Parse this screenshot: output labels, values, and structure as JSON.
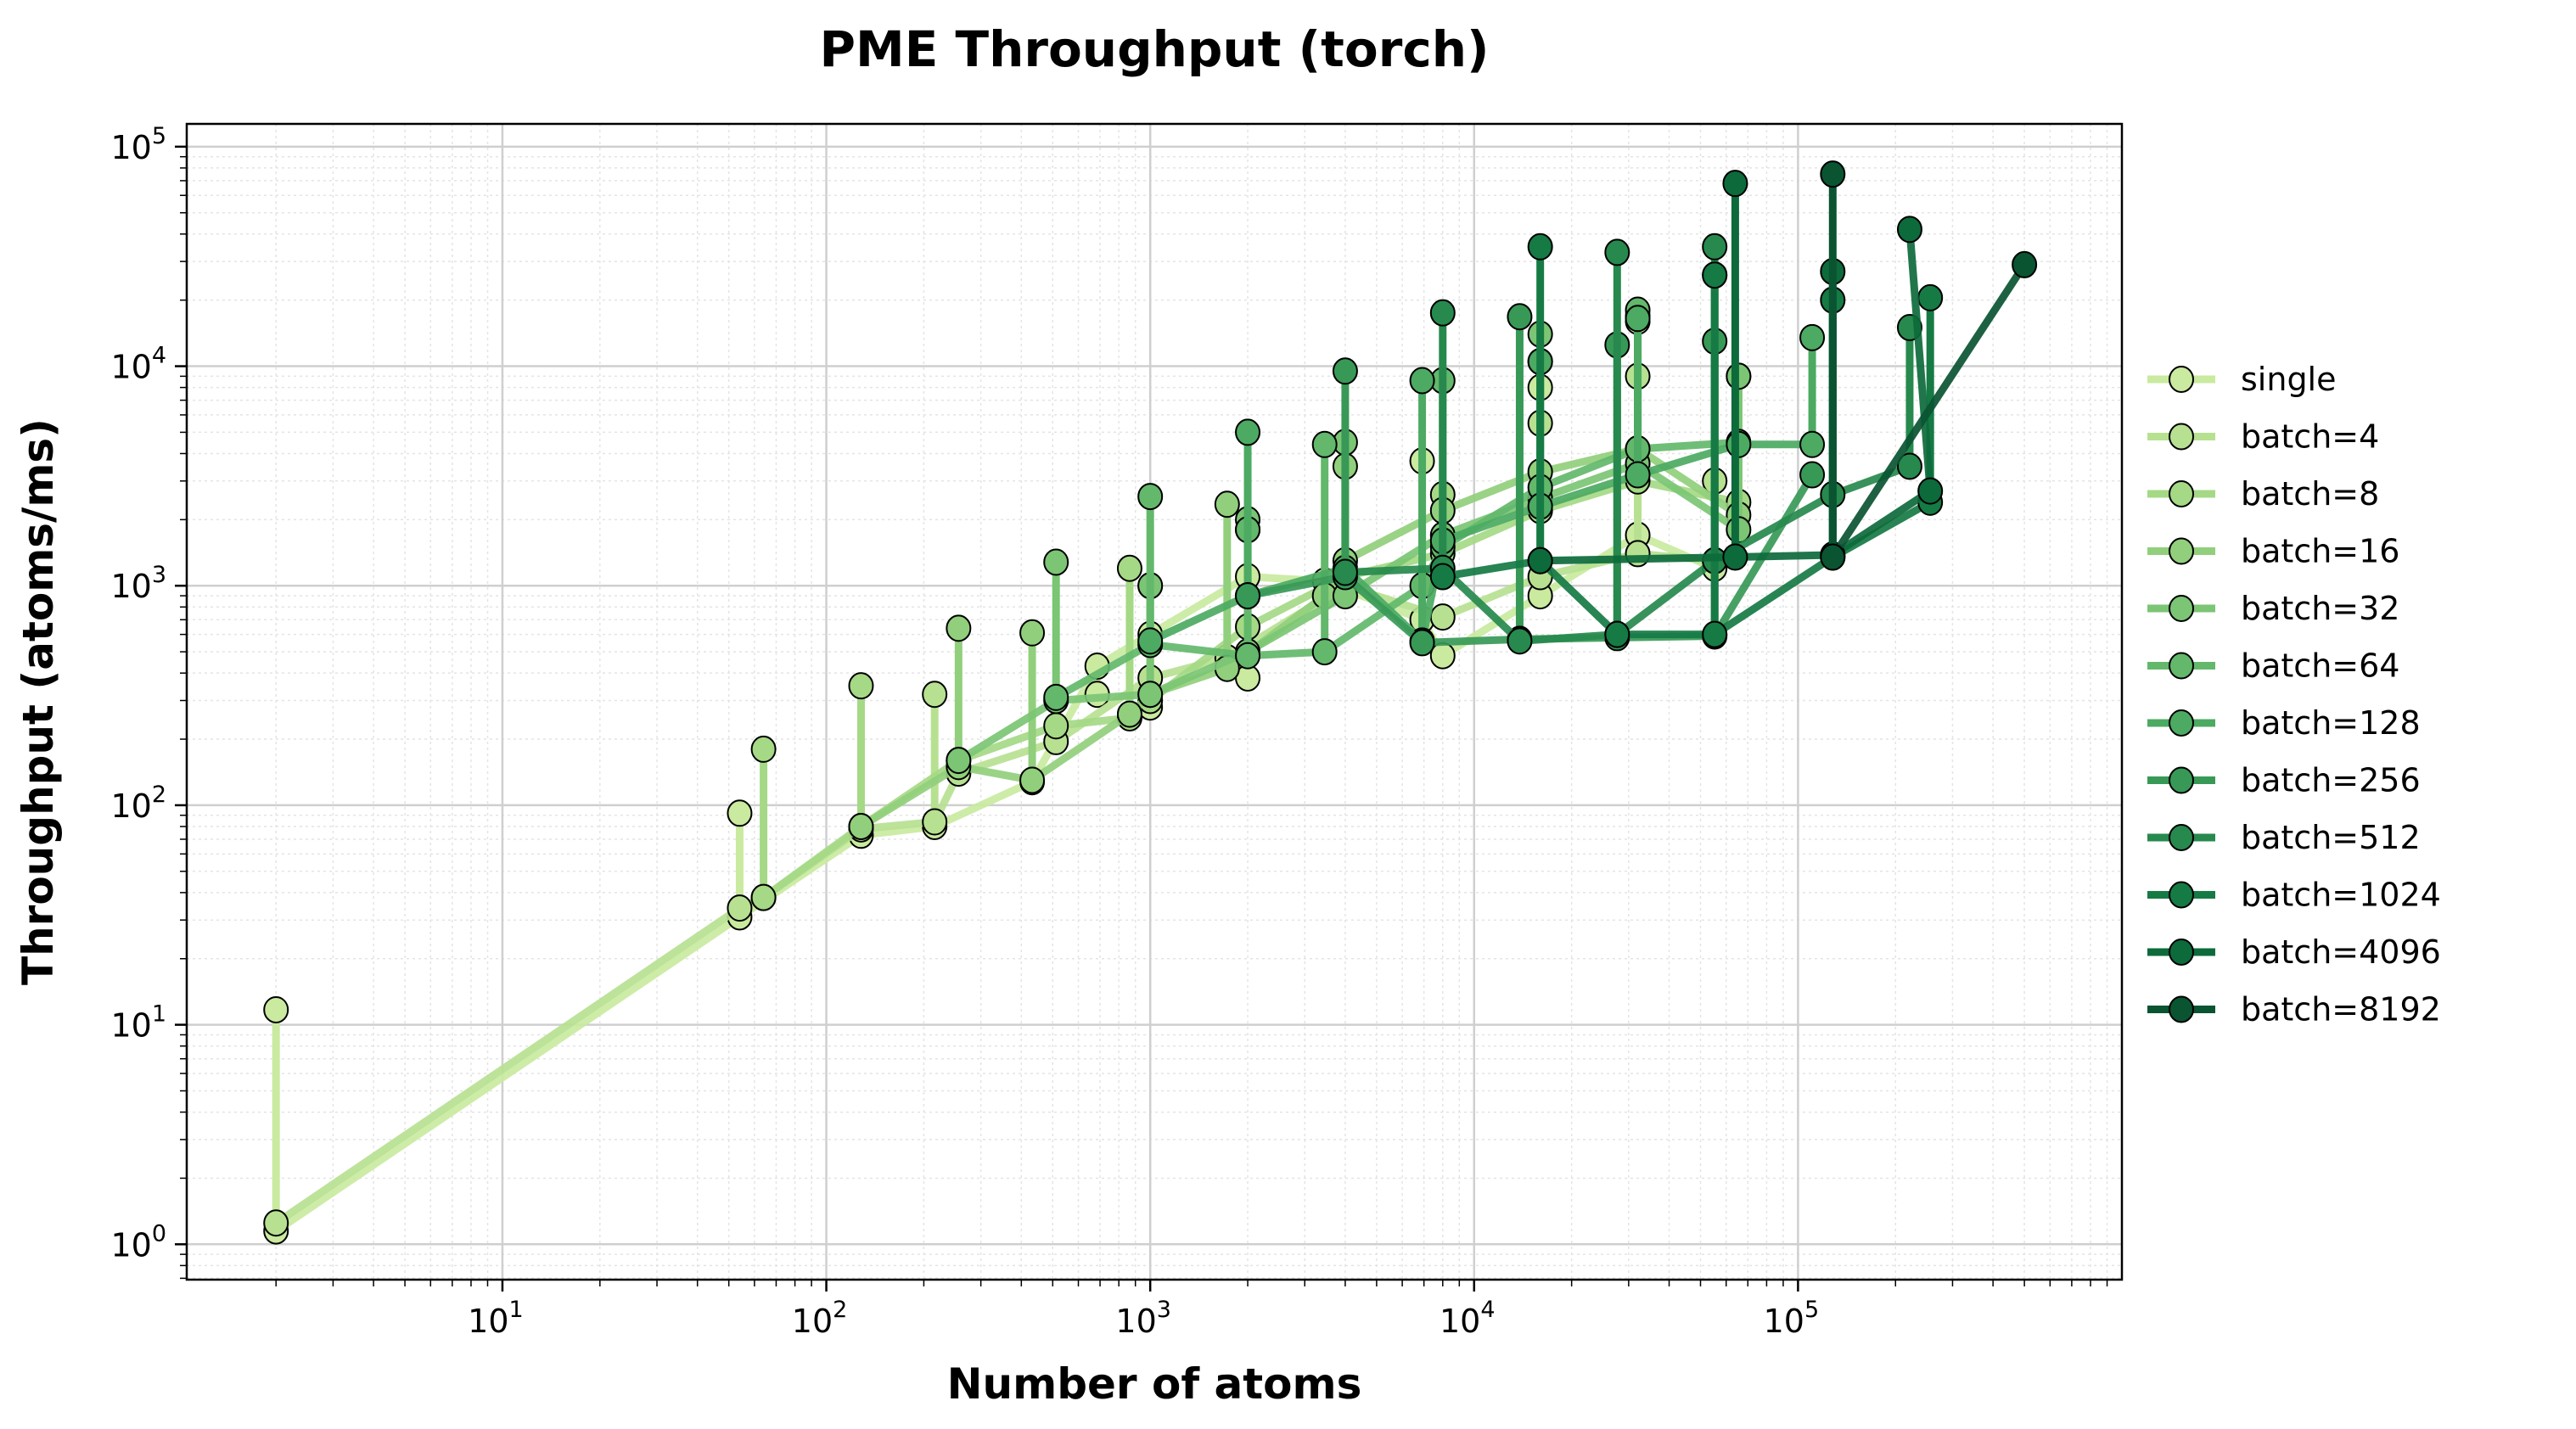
{
  "chart_data": {
    "type": "line",
    "title": "PME Throughput (torch)",
    "xlabel": "Number of atoms",
    "ylabel": "Throughput (atoms/ms)",
    "xscale": "log",
    "yscale": "log",
    "xlim": [
      1.06,
      1000000
    ],
    "ylim": [
      0.69,
      127000
    ],
    "grid": true,
    "legend_position": "right-outside",
    "x_ticks": [
      {
        "base": "10",
        "exp": "1",
        "value": 10
      },
      {
        "base": "10",
        "exp": "2",
        "value": 100
      },
      {
        "base": "10",
        "exp": "3",
        "value": 1000
      },
      {
        "base": "10",
        "exp": "4",
        "value": 10000
      },
      {
        "base": "10",
        "exp": "5",
        "value": 100000
      }
    ],
    "y_ticks": [
      {
        "base": "10",
        "exp": "0",
        "value": 1
      },
      {
        "base": "10",
        "exp": "1",
        "value": 10
      },
      {
        "base": "10",
        "exp": "2",
        "value": 100
      },
      {
        "base": "10",
        "exp": "3",
        "value": 1000
      },
      {
        "base": "10",
        "exp": "4",
        "value": 10000
      },
      {
        "base": "10",
        "exp": "5",
        "value": 100000
      }
    ],
    "series": [
      {
        "name": "single",
        "color": "#c9ea9f",
        "x": [
          2,
          54,
          128,
          216,
          432,
          686,
          1000,
          2000,
          3456,
          6912,
          8000,
          16000,
          32000,
          55296
        ],
        "y": [
          [
            1.15,
            11.7
          ],
          [
            31,
            92
          ],
          [
            73
          ],
          [
            80
          ],
          [
            128
          ],
          [
            430,
            320
          ],
          [
            600,
            280
          ],
          [
            1100,
            380
          ],
          [
            1050
          ],
          [
            700,
            3700
          ],
          [
            480
          ],
          [
            900,
            8000
          ],
          [
            1700,
            16000
          ],
          [
            1200,
            26000
          ]
        ]
      },
      {
        "name": "batch=4",
        "color": "#b7e191",
        "x": [
          2,
          54,
          64,
          128,
          216,
          256,
          512,
          1000,
          1728,
          4000,
          8000,
          16000,
          32000,
          55296
        ],
        "y": [
          [
            1.25
          ],
          [
            34
          ],
          [
            38
          ],
          [
            78
          ],
          [
            84,
            320
          ],
          [
            140
          ],
          [
            195
          ],
          [
            380,
            1000
          ],
          [
            470
          ],
          [
            1000
          ],
          [
            720
          ],
          [
            1100,
            5500
          ],
          [
            1400,
            9000
          ],
          [
            1300,
            3000
          ]
        ]
      },
      {
        "name": "batch=8",
        "color": "#a5d985",
        "x": [
          64,
          128,
          256,
          512,
          864,
          1000,
          2000,
          4000,
          8000,
          16000,
          32000,
          65536
        ],
        "y": [
          [
            38,
            180
          ],
          [
            80,
            350
          ],
          [
            160
          ],
          [
            230
          ],
          [
            250,
            1200
          ],
          [
            300
          ],
          [
            650,
            1800
          ],
          [
            1100
          ],
          [
            1400,
            2600
          ],
          [
            2200
          ],
          [
            3000,
            17000
          ],
          [
            2400
          ]
        ]
      },
      {
        "name": "batch=16",
        "color": "#91cf7c",
        "x": [
          128,
          256,
          432,
          864,
          1000,
          1728,
          3456,
          4000,
          8000,
          16000,
          32000,
          65536
        ],
        "y": [
          [
            80
          ],
          [
            150,
            640
          ],
          [
            130,
            610
          ],
          [
            260
          ],
          [
            320
          ],
          [
            420,
            2350
          ],
          [
            900
          ],
          [
            1300,
            3500
          ],
          [
            2200
          ],
          [
            3300,
            10500
          ],
          [
            4200
          ],
          [
            2100,
            9000
          ]
        ]
      },
      {
        "name": "batch=32",
        "color": "#7bc574",
        "x": [
          256,
          512,
          1000,
          2000,
          4000,
          8000,
          16000,
          32000,
          65536
        ],
        "y": [
          [
            160
          ],
          [
            300,
            1280
          ],
          [
            320,
            1000
          ],
          [
            500,
            2000
          ],
          [
            900,
            4500
          ],
          [
            1700
          ],
          [
            2500,
            14000
          ],
          [
            3600
          ],
          [
            1800,
            9000
          ]
        ]
      },
      {
        "name": "batch=64",
        "color": "#63b86b",
        "x": [
          512,
          1000,
          2000,
          3456,
          6912,
          8000,
          16000,
          32000,
          65536
        ],
        "y": [
          [
            310
          ],
          [
            540,
            2550
          ],
          [
            480,
            1800
          ],
          [
            500,
            4400
          ],
          [
            1000
          ],
          [
            1500,
            8600
          ],
          [
            2800
          ],
          [
            4200,
            18000
          ],
          [
            4500
          ]
        ]
      },
      {
        "name": "batch=128",
        "color": "#4caa62",
        "x": [
          1000,
          2000,
          4000,
          6912,
          8000,
          16000,
          32000,
          65536,
          110592
        ],
        "y": [
          [
            560
          ],
          [
            900,
            5000
          ],
          [
            1200
          ],
          [
            560,
            8600
          ],
          [
            1600
          ],
          [
            2300,
            10500
          ],
          [
            3200,
            16500
          ],
          [
            4400
          ],
          [
            4400,
            13500
          ]
        ]
      },
      {
        "name": "batch=256",
        "color": "#389957",
        "x": [
          2000,
          4000,
          6912,
          13824,
          27648,
          55296,
          110592
        ],
        "y": [
          [
            900
          ],
          [
            1100,
            9500
          ],
          [
            550
          ],
          [
            570,
            16800
          ],
          [
            580,
            12500
          ],
          [
            590,
            13000
          ],
          [
            3200
          ]
        ]
      },
      {
        "name": "batch=512",
        "color": "#27894d",
        "x": [
          4000,
          8000,
          13824,
          27648,
          55296,
          128000,
          221184
        ],
        "y": [
          [
            1150
          ],
          [
            1200,
            17500
          ],
          [
            560
          ],
          [
            600,
            33000
          ],
          [
            1300,
            35000
          ],
          [
            2600
          ],
          [
            3500,
            15000
          ]
        ]
      },
      {
        "name": "batch=1024",
        "color": "#167a44",
        "x": [
          8000,
          16000,
          27648,
          55296,
          128000,
          256000
        ],
        "y": [
          [
            1100
          ],
          [
            1300,
            35000
          ],
          [
            600
          ],
          [
            600,
            26000
          ],
          [
            1350,
            20000
          ],
          [
            2400,
            20500
          ]
        ]
      },
      {
        "name": "batch=4096",
        "color": "#0d6a3b",
        "x": [
          16000,
          64000,
          128000,
          256000,
          221184
        ],
        "y": [
          [
            1300
          ],
          [
            1350,
            68000
          ],
          [
            1380,
            27000
          ],
          [
            2700
          ],
          [
            42000
          ]
        ]
      },
      {
        "name": "batch=8192",
        "color": "#0a5432",
        "x": [
          128000,
          500000
        ],
        "y": [
          [
            1350,
            75000
          ],
          [
            29000
          ]
        ]
      }
    ]
  }
}
